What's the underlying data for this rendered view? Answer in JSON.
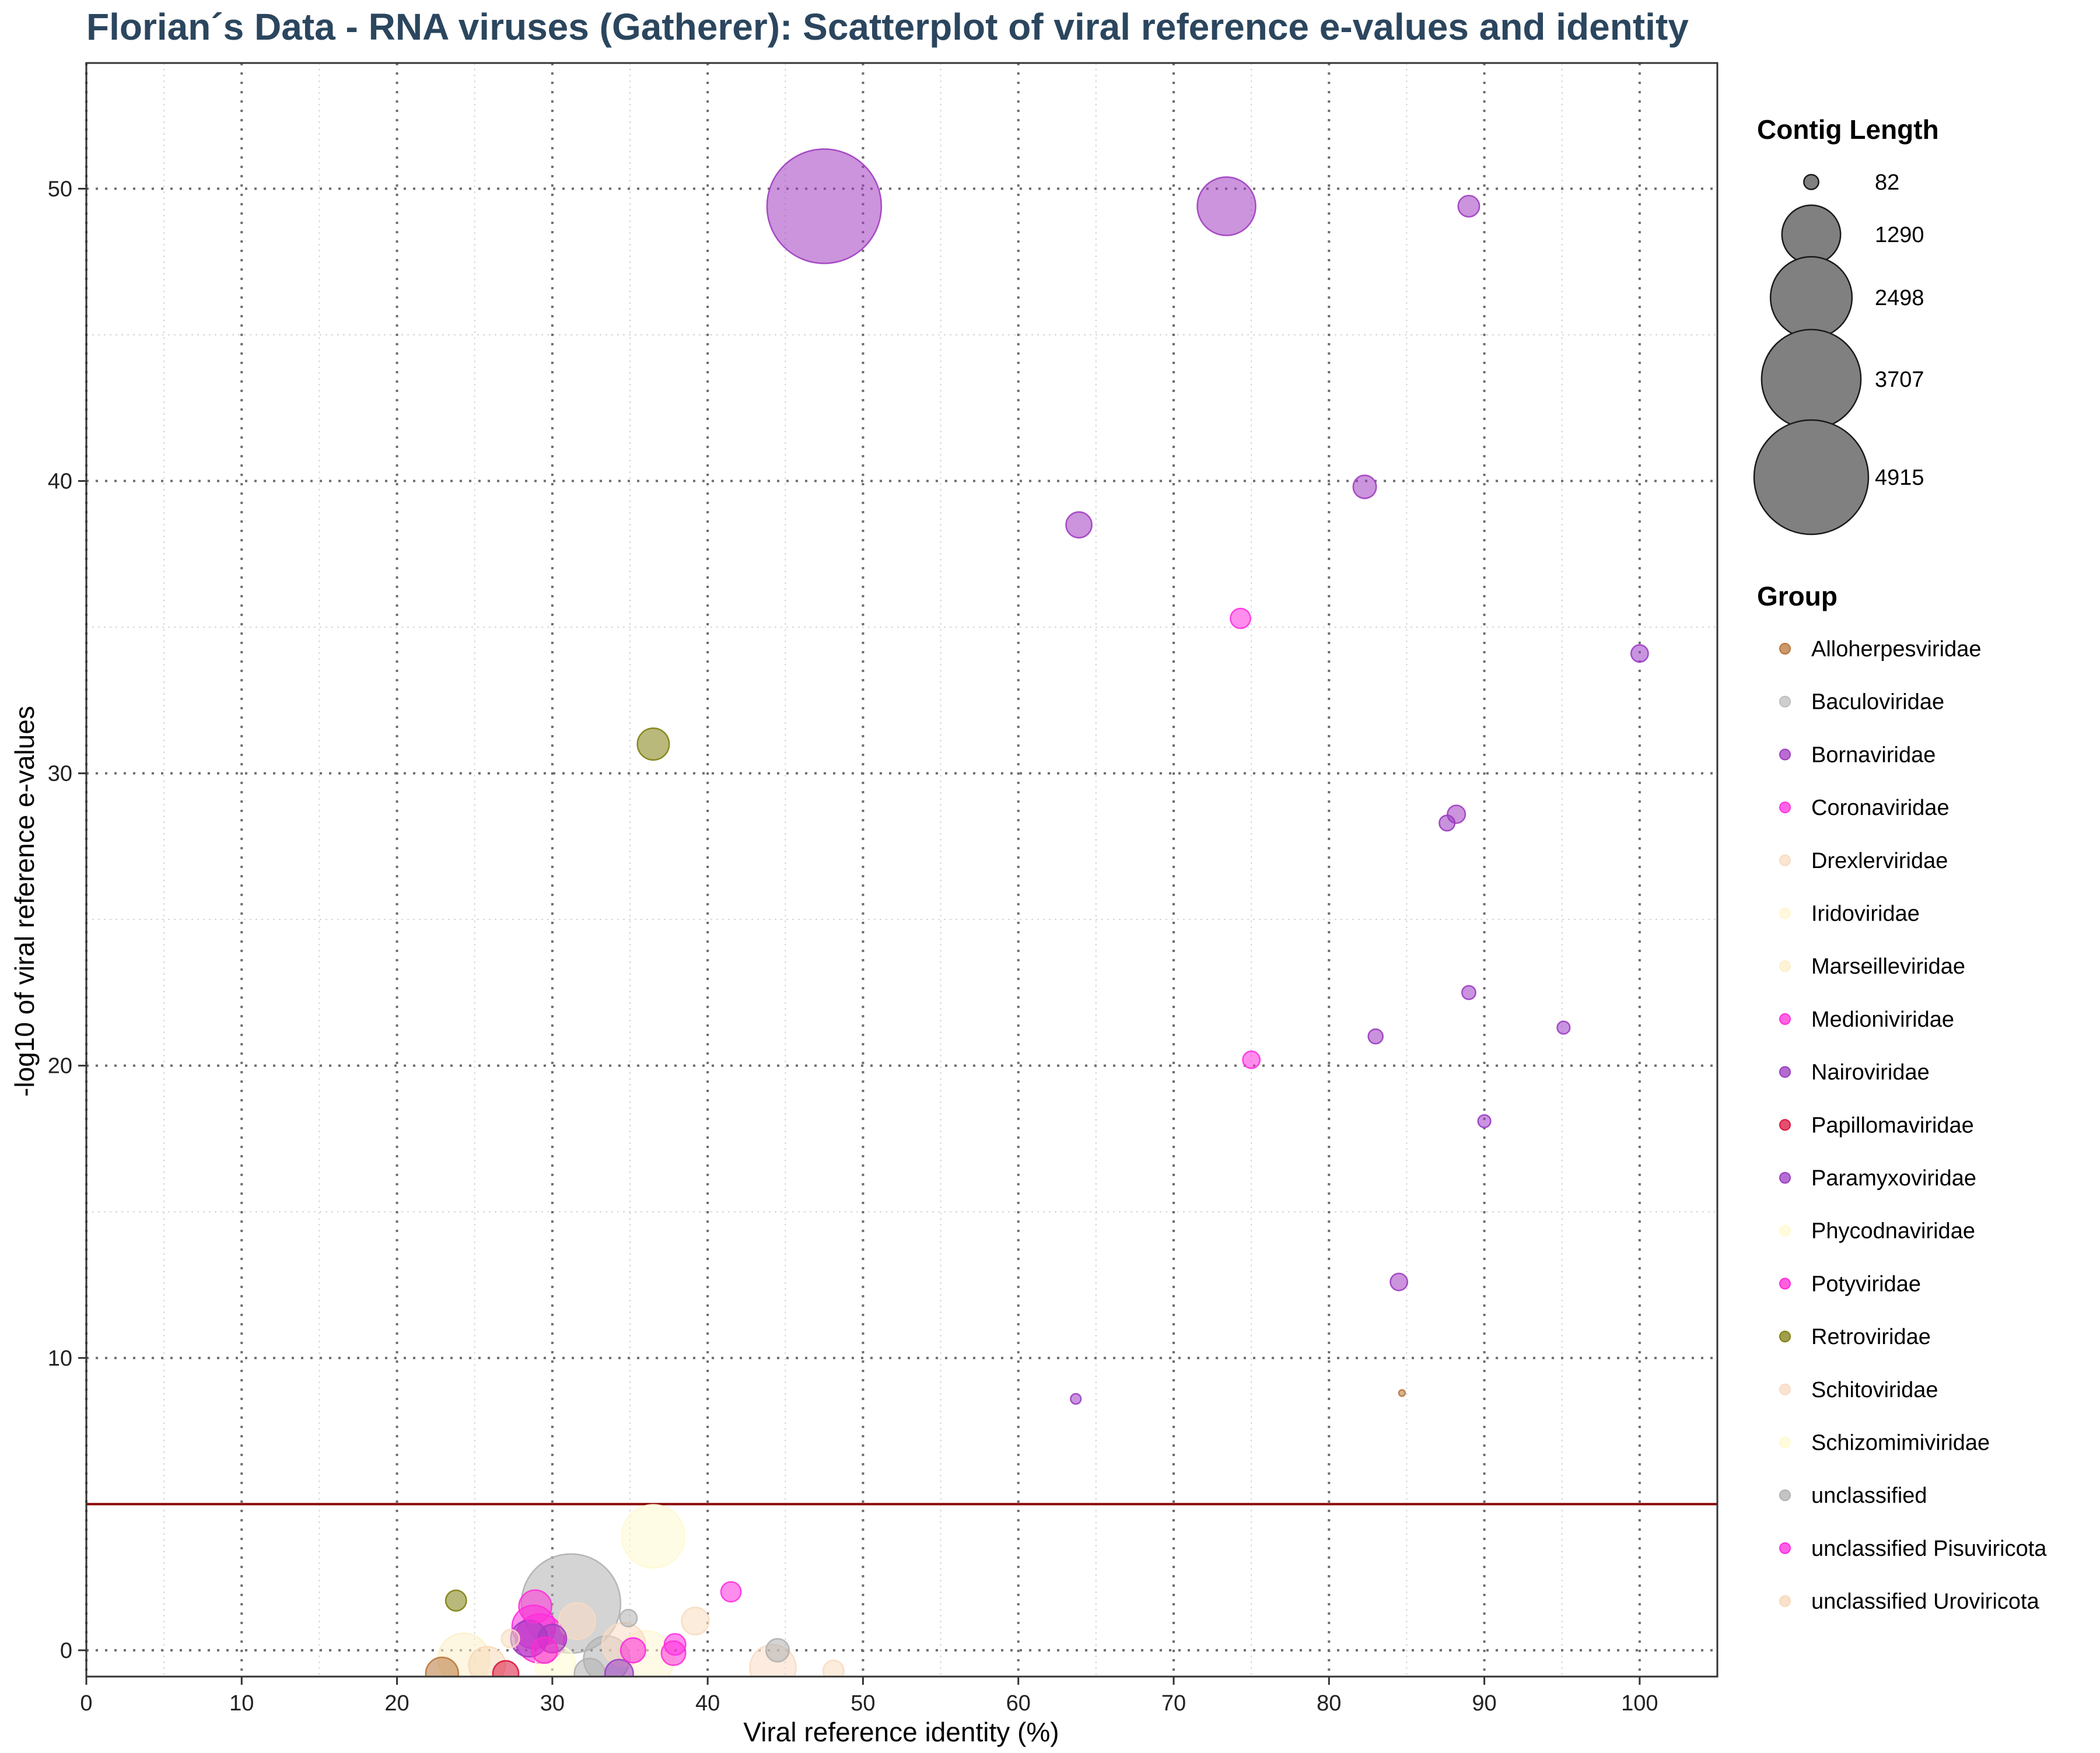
{
  "chart_data": {
    "type": "scatter",
    "title": "Florian´s Data - RNA viruses (Gatherer): Scatterplot of viral reference e-values and identity",
    "xlabel": "Viral reference identity (%)",
    "ylabel": "-log10 of viral reference e-values",
    "xlim": [
      0,
      105
    ],
    "ylim": [
      -0.9,
      54.3
    ],
    "x_ticks": [
      0,
      10,
      20,
      30,
      40,
      50,
      60,
      70,
      80,
      90,
      100
    ],
    "y_ticks": [
      0,
      10,
      20,
      30,
      40,
      50
    ],
    "grid": true,
    "threshold_line": {
      "y": 5,
      "color": "#8b0000"
    },
    "size_legend": {
      "title": "Contig Length",
      "values": [
        82,
        1290,
        2498,
        3707,
        4915
      ]
    },
    "color_legend": {
      "title": "Group",
      "entries": [
        {
          "label": "Alloherpesviridae",
          "color": "#b8763a"
        },
        {
          "label": "Baculoviridae",
          "color": "#bdbdbd"
        },
        {
          "label": "Bornaviridae",
          "color": "#a03cc0"
        },
        {
          "label": "Coronaviridae",
          "color": "#ff30e0"
        },
        {
          "label": "Drexlerviridae",
          "color": "#f8dcc0"
        },
        {
          "label": "Iridoviridae",
          "color": "#fff6d0"
        },
        {
          "label": "Marseilleviridae",
          "color": "#fcefc8"
        },
        {
          "label": "Medioniviridae",
          "color": "#ff30d8"
        },
        {
          "label": "Nairoviridae",
          "color": "#9a3ac0"
        },
        {
          "label": "Papillomaviridae",
          "color": "#dc143c"
        },
        {
          "label": "Paramyxoviridae",
          "color": "#9c3cc4"
        },
        {
          "label": "Phycodnaviridae",
          "color": "#fffad0"
        },
        {
          "label": "Potyviridae",
          "color": "#ff2ad4"
        },
        {
          "label": "Retroviridae",
          "color": "#7f7f10"
        },
        {
          "label": "Schitoviridae",
          "color": "#fadac2"
        },
        {
          "label": "Schizomimiviridae",
          "color": "#fffbd2"
        },
        {
          "label": "unclassified",
          "color": "#b0b0b0"
        },
        {
          "label": "unclassified Pisuviricota",
          "color": "#ff2ae0"
        },
        {
          "label": "unclassified Uroviricota",
          "color": "#f8d8b8"
        }
      ]
    },
    "points": [
      {
        "x": 47.5,
        "y": 49.4,
        "size": 4915,
        "group": "Bornaviridae"
      },
      {
        "x": 73.4,
        "y": 49.4,
        "size": 1280,
        "group": "Bornaviridae"
      },
      {
        "x": 89.0,
        "y": 49.4,
        "size": 170,
        "group": "Bornaviridae"
      },
      {
        "x": 82.3,
        "y": 39.8,
        "size": 200,
        "group": "Bornaviridae"
      },
      {
        "x": 63.9,
        "y": 38.5,
        "size": 250,
        "group": "Bornaviridae"
      },
      {
        "x": 74.3,
        "y": 35.3,
        "size": 150,
        "group": "Coronaviridae"
      },
      {
        "x": 100.0,
        "y": 34.1,
        "size": 110,
        "group": "Paramyxoviridae"
      },
      {
        "x": 36.5,
        "y": 31.0,
        "size": 380,
        "group": "Retroviridae"
      },
      {
        "x": 88.2,
        "y": 28.6,
        "size": 120,
        "group": "Bornaviridae"
      },
      {
        "x": 87.6,
        "y": 28.3,
        "size": 90,
        "group": "Nairoviridae"
      },
      {
        "x": 89.0,
        "y": 22.5,
        "size": 70,
        "group": "Paramyxoviridae"
      },
      {
        "x": 95.1,
        "y": 21.3,
        "size": 60,
        "group": "Paramyxoviridae"
      },
      {
        "x": 83.0,
        "y": 21.0,
        "size": 80,
        "group": "Nairoviridae"
      },
      {
        "x": 75.0,
        "y": 20.2,
        "size": 110,
        "group": "Coronaviridae"
      },
      {
        "x": 90.0,
        "y": 18.1,
        "size": 60,
        "group": "Paramyxoviridae"
      },
      {
        "x": 84.5,
        "y": 12.6,
        "size": 110,
        "group": "Bornaviridae"
      },
      {
        "x": 63.7,
        "y": 8.6,
        "size": 40,
        "group": "Paramyxoviridae"
      },
      {
        "x": 84.7,
        "y": 8.8,
        "size": 15,
        "group": "Alloherpesviridae"
      },
      {
        "x": 36.5,
        "y": 3.9,
        "size": 1500,
        "group": "Phycodnaviridae"
      },
      {
        "x": 31.2,
        "y": 1.6,
        "size": 3700,
        "group": "unclassified"
      },
      {
        "x": 41.5,
        "y": 2.0,
        "size": 150,
        "group": "Coronaviridae"
      },
      {
        "x": 23.8,
        "y": 1.7,
        "size": 160,
        "group": "Retroviridae"
      },
      {
        "x": 39.2,
        "y": 1.0,
        "size": 280,
        "group": "Drexlerviridae"
      },
      {
        "x": 31.6,
        "y": 1.0,
        "size": 500,
        "group": "Schitoviridae"
      },
      {
        "x": 34.9,
        "y": 1.1,
        "size": 110,
        "group": "unclassified"
      },
      {
        "x": 28.9,
        "y": 1.5,
        "size": 400,
        "group": "Medioniviridae"
      },
      {
        "x": 28.8,
        "y": 0.8,
        "size": 700,
        "group": "unclassified Pisuviricota"
      },
      {
        "x": 29.2,
        "y": 0.4,
        "size": 900,
        "group": "Potyviridae"
      },
      {
        "x": 28.5,
        "y": 0.4,
        "size": 500,
        "group": "Nairoviridae"
      },
      {
        "x": 29.5,
        "y": 0.0,
        "size": 250,
        "group": "Potyviridae"
      },
      {
        "x": 30.0,
        "y": 0.4,
        "size": 300,
        "group": "Bornaviridae"
      },
      {
        "x": 37.9,
        "y": 0.2,
        "size": 170,
        "group": "Coronaviridae"
      },
      {
        "x": 37.8,
        "y": -0.1,
        "size": 220,
        "group": "Medioniviridae"
      },
      {
        "x": 35.2,
        "y": 0.0,
        "size": 230,
        "group": "unclassified Pisuviricota"
      },
      {
        "x": 34.6,
        "y": 0.2,
        "size": 700,
        "group": "Schitoviridae"
      },
      {
        "x": 36.0,
        "y": -0.3,
        "size": 1200,
        "group": "Iridoviridae"
      },
      {
        "x": 33.5,
        "y": -0.3,
        "size": 800,
        "group": "unclassified"
      },
      {
        "x": 27.3,
        "y": 0.4,
        "size": 120,
        "group": "Drexlerviridae"
      },
      {
        "x": 24.3,
        "y": -0.3,
        "size": 1000,
        "group": "Marseilleviridae"
      },
      {
        "x": 25.8,
        "y": -0.5,
        "size": 500,
        "group": "unclassified Uroviricota"
      },
      {
        "x": 44.5,
        "y": 0.0,
        "size": 200,
        "group": "unclassified"
      },
      {
        "x": 44.2,
        "y": -0.6,
        "size": 800,
        "group": "Schitoviridae"
      },
      {
        "x": 48.1,
        "y": -0.7,
        "size": 160,
        "group": "Drexlerviridae"
      },
      {
        "x": 32.4,
        "y": -0.8,
        "size": 350,
        "group": "unclassified"
      },
      {
        "x": 34.3,
        "y": -0.8,
        "size": 300,
        "group": "Paramyxoviridae"
      },
      {
        "x": 27.0,
        "y": -0.8,
        "size": 250,
        "group": "Papillomaviridae"
      },
      {
        "x": 22.9,
        "y": -0.8,
        "size": 400,
        "group": "Alloherpesviridae"
      },
      {
        "x": 30.2,
        "y": -0.5,
        "size": 600,
        "group": "Schizomimiviridae"
      }
    ]
  }
}
